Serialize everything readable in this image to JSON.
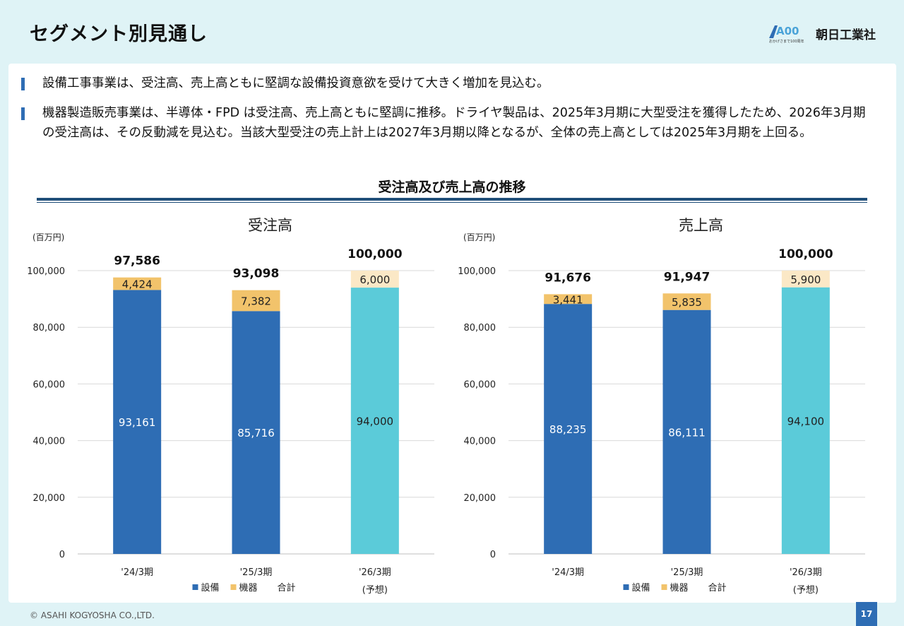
{
  "page": {
    "title": "セグメント別見通し",
    "logo_text": "朝日工業社",
    "logo_mark_text": "A00",
    "logo_tagline": "おかげさまで100周年",
    "section_title": "受注高及び売上高の推移",
    "footer": "© ASAHI KOGYOSHA CO.,LTD.",
    "page_number": "17"
  },
  "bullets": [
    "設備工事事業は、受注高、売上高ともに堅調な設備投資意欲を受けて大きく増加を見込む。",
    "機器製造販売事業は、半導体・FPD は受注高、売上高ともに堅調に推移。ドライヤ製品は、2025年3月期に大型受注を獲得したため、2026年3月期の受注高は、その反動減を見込む。当該大型受注の売上計上は2027年3月期以降となるが、全体の売上高としては2025年3月期を上回る。"
  ],
  "colors": {
    "equipment": "#2e6db4",
    "equipment_forecast": "#5bcbd9",
    "machinery": "#f2c36b",
    "machinery_forecast": "#fbe8c6",
    "accent": "#1f4e79"
  },
  "chart_data": [
    {
      "type": "bar",
      "stacked": true,
      "title": "受注高",
      "unit_label": "(百万円)",
      "categories": [
        "'24/3期",
        "'25/3期",
        "'26/3期"
      ],
      "category_notes": [
        "",
        "",
        "(予想)"
      ],
      "series": [
        {
          "name": "設備",
          "values": [
            93161,
            85716,
            94000
          ],
          "labels": [
            "93,161",
            "85,716",
            "94,000"
          ]
        },
        {
          "name": "機器",
          "values": [
            4424,
            7382,
            6000
          ],
          "labels": [
            "4,424",
            "7,382",
            "6,000"
          ]
        }
      ],
      "totals": [
        97586,
        93098,
        100000
      ],
      "total_labels": [
        "97,586",
        "93,098",
        "100,000"
      ],
      "legend": [
        "設備",
        "機器",
        "合計"
      ],
      "ylim": [
        0,
        100000
      ],
      "yticks": [
        0,
        20000,
        40000,
        60000,
        80000,
        100000
      ],
      "ytick_labels": [
        "0",
        "20,000",
        "40,000",
        "60,000",
        "80,000",
        "100,000"
      ],
      "grid": true
    },
    {
      "type": "bar",
      "stacked": true,
      "title": "売上高",
      "unit_label": "(百万円)",
      "categories": [
        "'24/3期",
        "'25/3期",
        "'26/3期"
      ],
      "category_notes": [
        "",
        "",
        "(予想)"
      ],
      "series": [
        {
          "name": "設備",
          "values": [
            88235,
            86111,
            94100
          ],
          "labels": [
            "88,235",
            "86,111",
            "94,100"
          ]
        },
        {
          "name": "機器",
          "values": [
            3441,
            5835,
            5900
          ],
          "labels": [
            "3,441",
            "5,835",
            "5,900"
          ]
        }
      ],
      "totals": [
        91676,
        91947,
        100000
      ],
      "total_labels": [
        "91,676",
        "91,947",
        "100,000"
      ],
      "legend": [
        "設備",
        "機器",
        "合計"
      ],
      "ylim": [
        0,
        100000
      ],
      "yticks": [
        0,
        20000,
        40000,
        60000,
        80000,
        100000
      ],
      "ytick_labels": [
        "0",
        "20,000",
        "40,000",
        "60,000",
        "80,000",
        "100,000"
      ],
      "grid": true
    }
  ]
}
